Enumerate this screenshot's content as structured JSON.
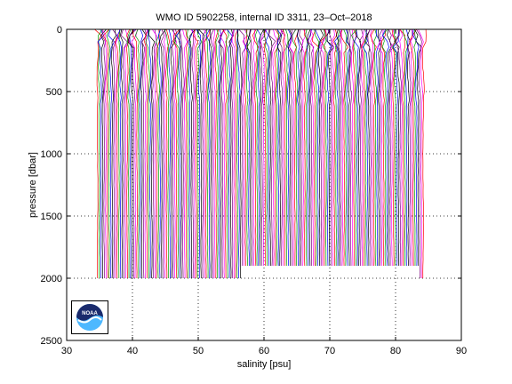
{
  "chart_data": {
    "type": "line",
    "title": "WMO ID 5902258, internal ID 3311, 23–Oct–2018",
    "xlabel": "salinity [psu]",
    "ylabel": "pressure [dbar]",
    "xlim": [
      30,
      90
    ],
    "ylim": [
      0,
      2500
    ],
    "y_reversed": true,
    "grid": true,
    "grid_style": "dotted",
    "xticks": [
      30,
      40,
      50,
      60,
      70,
      80,
      90
    ],
    "yticks": [
      0,
      500,
      1000,
      1500,
      2000,
      2500
    ],
    "profile_offset_start": 34.7,
    "profile_offset_end": 84.3,
    "profile_colors": [
      "#ff0000",
      "#00a000",
      "#0000ff",
      "#000000",
      "#800080",
      "#ff00ff"
    ],
    "typical_max_pressure": 2000,
    "short_profile_max_pressure": 1900,
    "short_profile_range": [
      56.5,
      83.5
    ]
  },
  "logo": {
    "label": "NOAA",
    "colors": {
      "dark": "#1a2a6c",
      "light": "#4db8ff",
      "white": "#ffffff"
    }
  }
}
